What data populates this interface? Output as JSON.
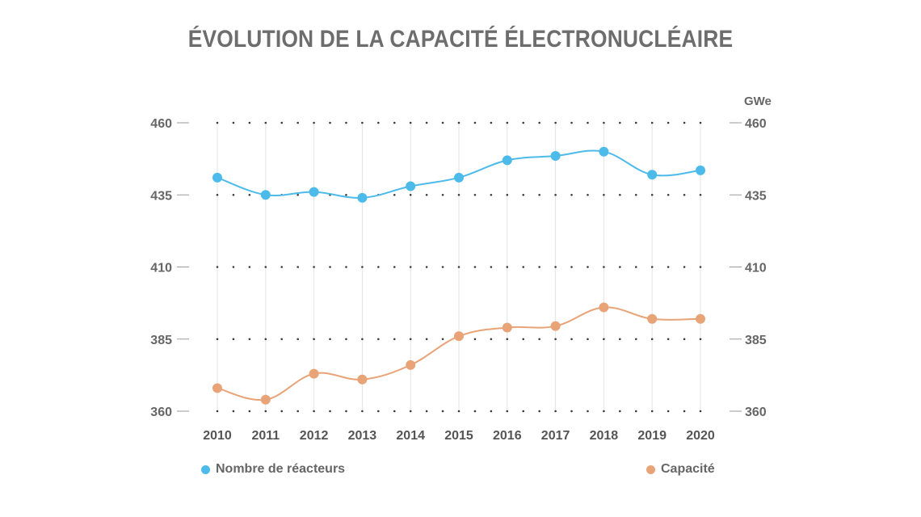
{
  "chart_data": {
    "type": "line",
    "title": "ÉVOLUTION DE LA CAPACITÉ ÉLECTRONUCLÉAIRE",
    "categories": [
      "2010",
      "2011",
      "2012",
      "2013",
      "2014",
      "2015",
      "2016",
      "2017",
      "2018",
      "2019",
      "2020"
    ],
    "ylim": [
      360,
      460
    ],
    "yticks": [
      360,
      385,
      410,
      435,
      460
    ],
    "y2lim": [
      360,
      460
    ],
    "y2label": "GWe",
    "grid": true,
    "legend_position": "bottom",
    "series": [
      {
        "name": "Nombre de réacteurs",
        "color": "#4dbbea",
        "axis": "left",
        "values": [
          441,
          435,
          436,
          434,
          438,
          441,
          447,
          448.5,
          450,
          442,
          443.5
        ]
      },
      {
        "name": "Capacité",
        "color": "#e8a377",
        "axis": "right",
        "values": [
          368,
          364,
          373,
          371,
          376,
          386,
          389,
          389.5,
          396,
          392,
          392
        ]
      }
    ]
  }
}
